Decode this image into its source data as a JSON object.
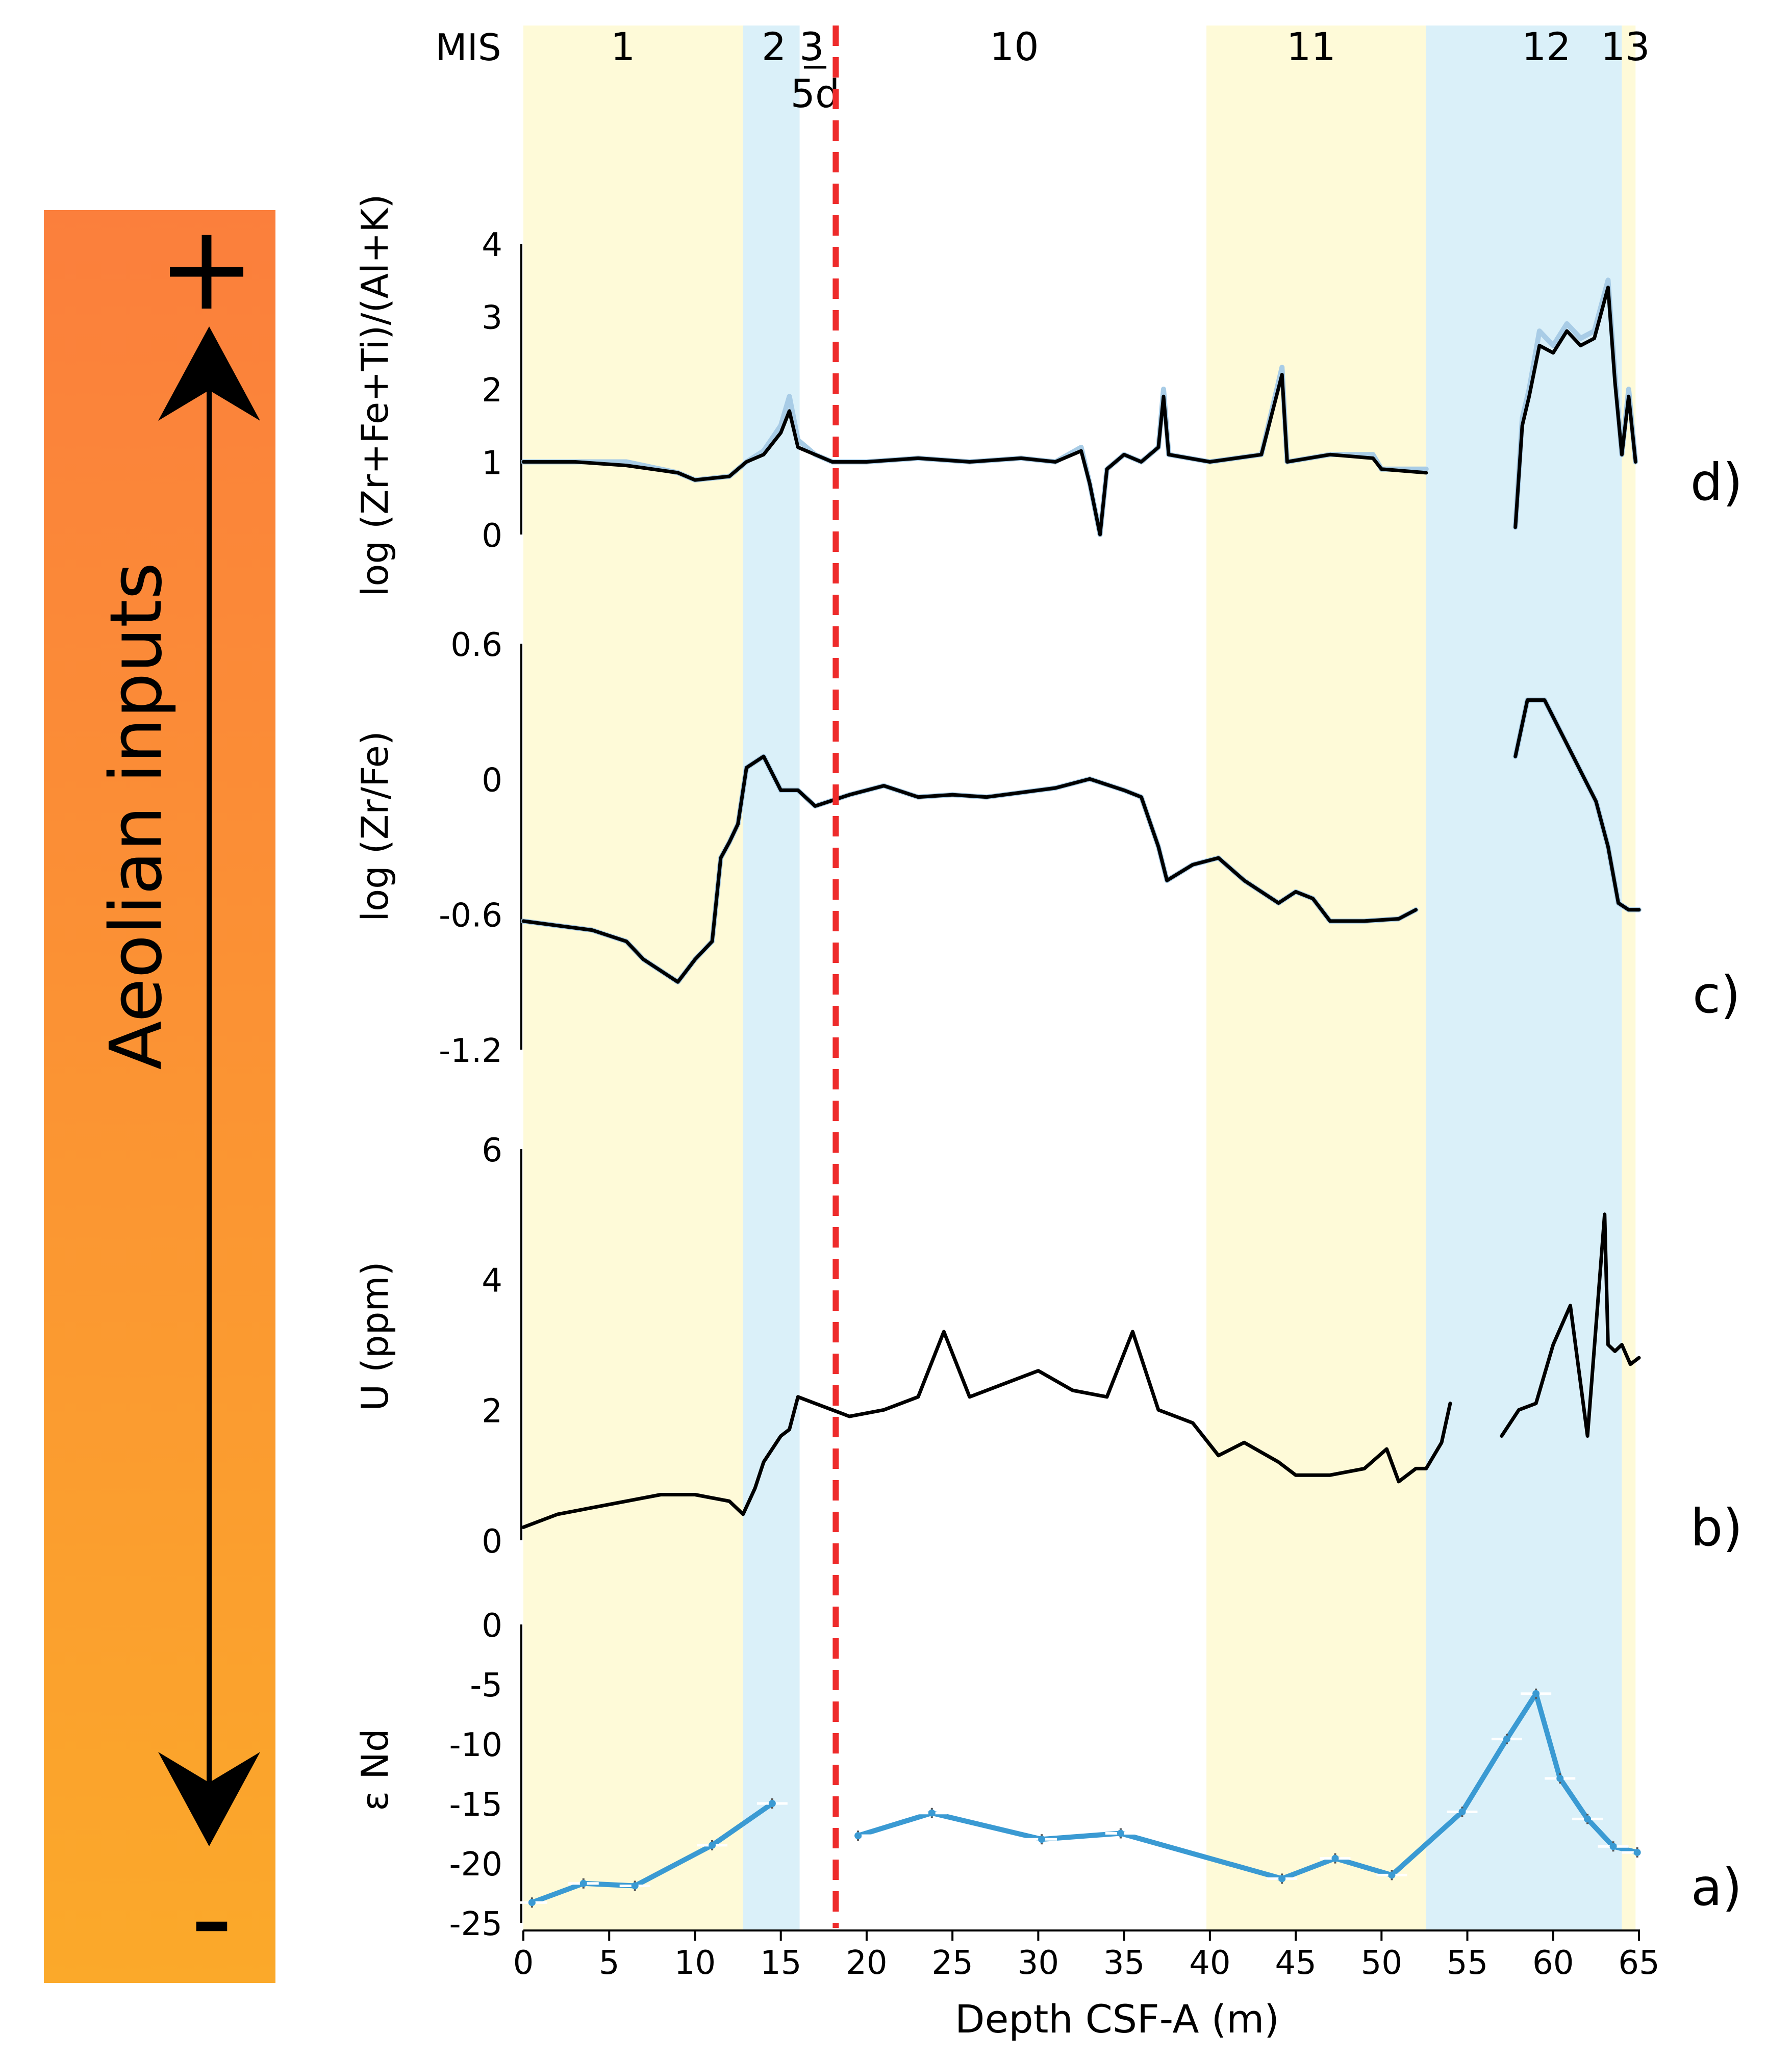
{
  "sidebar": {
    "label": "Aeolian inputs",
    "plus": "+",
    "minus": "-",
    "gradient_top": "#FB7F3C",
    "gradient_bottom": "#FBA92A"
  },
  "mis": {
    "label": "MIS",
    "stages": [
      {
        "label": "1",
        "from": 0,
        "to": 12.8,
        "color": "#FEFAD8",
        "label_x": 5.8
      },
      {
        "label": "2",
        "from": 12.8,
        "to": 16.1,
        "color": "#DAF0F9",
        "label_x": 14.6
      },
      {
        "label": "3",
        "from": 16.1,
        "to": 17.3,
        "color": "#FFFFFF",
        "label_x": 16.8
      },
      {
        "label": "10",
        "from": 18.4,
        "to": 39.8,
        "color": "#FFFFFF",
        "label_x": 28.6
      },
      {
        "label": "11",
        "from": 39.8,
        "to": 52.6,
        "color": "#FEFAD8",
        "label_x": 45.9
      },
      {
        "label": "12",
        "from": 52.6,
        "to": 64.0,
        "color": "#DAF0F9",
        "label_x": 59.6
      },
      {
        "label": "13",
        "from": 64.0,
        "to": 64.8,
        "color": "#FEFAD8",
        "label_x": 64.2
      }
    ],
    "sublabel": "5d",
    "sublabel_x": 17.0,
    "boundary_depth": 18.2,
    "boundary_color": "#EE2B2B"
  },
  "chart_data": [
    {
      "type": "line",
      "panel_label": "d)",
      "ylabel": "log (Zr+Fe+Ti)/(Al+K)",
      "ylim": [
        0,
        4
      ],
      "yticks": [
        "0",
        "1",
        "2",
        "3",
        "4"
      ],
      "series": [
        {
          "color": "#A8CCE6",
          "x": [
            0,
            3,
            6,
            9,
            10,
            12,
            13,
            14,
            15,
            15.5,
            16,
            17,
            18,
            20,
            23,
            26,
            29,
            31,
            32.5,
            33,
            33.6,
            34,
            35,
            36,
            37,
            37.3,
            37.6,
            40,
            43,
            44.2,
            44.5,
            47,
            49.5,
            50,
            52.6
          ],
          "y": [
            1.0,
            1.0,
            1.0,
            0.85,
            0.75,
            0.8,
            1.0,
            1.15,
            1.5,
            1.9,
            1.3,
            1.1,
            1.0,
            1.0,
            1.05,
            1.0,
            1.05,
            1.0,
            1.2,
            0.7,
            0.0,
            0.9,
            1.1,
            1.0,
            1.2,
            2.0,
            1.1,
            1.0,
            1.1,
            2.3,
            1.0,
            1.1,
            1.1,
            0.9,
            0.9
          ]
        },
        {
          "color": "#000000",
          "x": [
            0,
            3,
            6,
            9,
            10,
            12,
            13,
            14,
            15,
            15.5,
            16,
            17,
            18,
            20,
            23,
            26,
            29,
            31,
            32.5,
            33,
            33.6,
            34,
            35,
            36,
            37,
            37.3,
            37.6,
            40,
            43,
            44.2,
            44.5,
            47,
            49.5,
            50,
            52.6
          ],
          "y": [
            1.0,
            1.0,
            0.95,
            0.85,
            0.75,
            0.8,
            1.0,
            1.1,
            1.4,
            1.7,
            1.2,
            1.1,
            1.0,
            1.0,
            1.05,
            1.0,
            1.05,
            1.0,
            1.15,
            0.7,
            0.0,
            0.9,
            1.1,
            1.0,
            1.2,
            1.9,
            1.1,
            1.0,
            1.1,
            2.2,
            1.0,
            1.1,
            1.05,
            0.9,
            0.85
          ]
        },
        {
          "color": "#A8CCE6",
          "x": [
            57.8,
            58.2,
            58.6,
            59.2,
            60,
            60.8,
            61.6,
            62.4,
            63.2,
            63.6,
            64,
            64.4,
            64.8
          ],
          "y": [
            0.1,
            1.6,
            2.0,
            2.8,
            2.6,
            2.9,
            2.7,
            2.8,
            3.5,
            2.2,
            1.1,
            2.0,
            1.0
          ]
        },
        {
          "color": "#000000",
          "x": [
            57.8,
            58.2,
            58.6,
            59.2,
            60,
            60.8,
            61.6,
            62.4,
            63.2,
            63.6,
            64,
            64.4,
            64.8
          ],
          "y": [
            0.1,
            1.5,
            1.9,
            2.6,
            2.5,
            2.8,
            2.6,
            2.7,
            3.4,
            2.1,
            1.1,
            1.9,
            1.0
          ]
        }
      ]
    },
    {
      "type": "line",
      "panel_label": "c)",
      "ylabel": "log (Zr/Fe)",
      "ylim": [
        -1.2,
        0.6
      ],
      "yticks": [
        "-1.2",
        "-0.6",
        "0",
        "0.6"
      ],
      "series": [
        {
          "color": "#A8CCE6",
          "x": [
            0,
            2,
            4,
            6,
            7,
            8,
            9,
            10,
            11,
            11.5,
            12,
            12.5,
            13,
            14,
            15,
            16,
            17,
            19,
            21,
            23,
            25,
            27,
            29,
            31,
            33,
            35,
            36,
            37,
            37.5,
            39,
            40.5,
            42,
            44,
            45,
            46,
            47,
            49,
            51,
            52
          ],
          "y": [
            -0.63,
            -0.65,
            -0.67,
            -0.72,
            -0.8,
            -0.85,
            -0.9,
            -0.8,
            -0.72,
            -0.35,
            -0.28,
            -0.2,
            0.05,
            0.1,
            -0.05,
            -0.05,
            -0.12,
            -0.07,
            -0.03,
            -0.08,
            -0.07,
            -0.08,
            -0.06,
            -0.04,
            0.0,
            -0.05,
            -0.08,
            -0.3,
            -0.45,
            -0.38,
            -0.35,
            -0.45,
            -0.55,
            -0.5,
            -0.53,
            -0.63,
            -0.63,
            -0.62,
            -0.58
          ]
        },
        {
          "color": "#000000",
          "x": [
            0,
            2,
            4,
            6,
            7,
            8,
            9,
            10,
            11,
            11.5,
            12,
            12.5,
            13,
            14,
            15,
            16,
            17,
            19,
            21,
            23,
            25,
            27,
            29,
            31,
            33,
            35,
            36,
            37,
            37.5,
            39,
            40.5,
            42,
            44,
            45,
            46,
            47,
            49,
            51,
            52
          ],
          "y": [
            -0.63,
            -0.65,
            -0.67,
            -0.72,
            -0.8,
            -0.85,
            -0.9,
            -0.8,
            -0.72,
            -0.35,
            -0.28,
            -0.2,
            0.05,
            0.1,
            -0.05,
            -0.05,
            -0.12,
            -0.07,
            -0.03,
            -0.08,
            -0.07,
            -0.08,
            -0.06,
            -0.04,
            0.0,
            -0.05,
            -0.08,
            -0.3,
            -0.45,
            -0.38,
            -0.35,
            -0.45,
            -0.55,
            -0.5,
            -0.53,
            -0.63,
            -0.63,
            -0.62,
            -0.58
          ]
        },
        {
          "color": "#A8CCE6",
          "x": [
            57.8,
            58.5,
            59.5,
            60.5,
            61.5,
            62.5,
            63.2,
            63.8,
            64.4,
            65
          ],
          "y": [
            0.1,
            0.35,
            0.35,
            0.2,
            0.05,
            -0.1,
            -0.3,
            -0.55,
            -0.58,
            -0.58
          ]
        },
        {
          "color": "#000000",
          "x": [
            57.8,
            58.5,
            59.5,
            60.5,
            61.5,
            62.5,
            63.2,
            63.8,
            64.4,
            65
          ],
          "y": [
            0.1,
            0.35,
            0.35,
            0.2,
            0.05,
            -0.1,
            -0.3,
            -0.55,
            -0.58,
            -0.58
          ]
        }
      ]
    },
    {
      "type": "line",
      "panel_label": "b)",
      "ylabel": "U (ppm)",
      "ylim": [
        0,
        6
      ],
      "yticks": [
        "0",
        "2",
        "4",
        "6"
      ],
      "series": [
        {
          "color": "#000000",
          "x": [
            0,
            2,
            4,
            6,
            8,
            10,
            12,
            12.8,
            13.5,
            14,
            15,
            15.5,
            16,
            17,
            18,
            19,
            21,
            23,
            24.5,
            26,
            28,
            30,
            32,
            34,
            35.5,
            37,
            39,
            40.5,
            42,
            44,
            45,
            47,
            49,
            50.3,
            51,
            52,
            52.6,
            53.5,
            54
          ],
          "y": [
            0.2,
            0.4,
            0.5,
            0.6,
            0.7,
            0.7,
            0.6,
            0.4,
            0.8,
            1.2,
            1.6,
            1.7,
            2.2,
            2.1,
            2.0,
            1.9,
            2.0,
            2.2,
            3.2,
            2.2,
            2.4,
            2.6,
            2.3,
            2.2,
            3.2,
            2.0,
            1.8,
            1.3,
            1.5,
            1.2,
            1.0,
            1.0,
            1.1,
            1.4,
            0.9,
            1.1,
            1.1,
            1.5,
            2.1
          ]
        },
        {
          "color": "#000000",
          "x": [
            57,
            58,
            59,
            60,
            60.5,
            61,
            62,
            63,
            63.2,
            63.6,
            64,
            64.5,
            65
          ],
          "y": [
            1.6,
            2.0,
            2.1,
            3.0,
            3.3,
            3.6,
            1.6,
            5.0,
            3.0,
            2.9,
            3.0,
            2.7,
            2.8
          ]
        }
      ]
    },
    {
      "type": "line",
      "panel_label": "a)",
      "ylabel": "ε Nd",
      "ylim": [
        -25,
        0
      ],
      "yticks": [
        "-25",
        "-20",
        "-15",
        "-10",
        "-5",
        "0"
      ],
      "series": [
        {
          "color": "#3A9AD3",
          "x": [
            0.5,
            3.5,
            6.5,
            11,
            14.5
          ],
          "y": [
            -23.3,
            -21.7,
            -21.9,
            -18.5,
            -15.0
          ]
        },
        {
          "color": "#3A9AD3",
          "x": [
            19.5,
            23.8,
            30.2,
            34.8,
            44.2,
            47.3,
            50.6,
            54.7,
            57.3,
            59.0,
            60.4,
            62.0,
            63.5,
            64.9
          ],
          "y": [
            -17.7,
            -15.8,
            -18.0,
            -17.5,
            -21.3,
            -19.6,
            -21.0,
            -15.7,
            -9.6,
            -5.8,
            -12.9,
            -16.3,
            -18.6,
            -19.1
          ]
        }
      ]
    }
  ],
  "xaxis": {
    "label": "Depth CSF-A (m)",
    "xlim": [
      0,
      65
    ],
    "ticks": [
      "0",
      "5",
      "10",
      "15",
      "20",
      "25",
      "30",
      "35",
      "40",
      "45",
      "50",
      "55",
      "60",
      "65"
    ]
  }
}
